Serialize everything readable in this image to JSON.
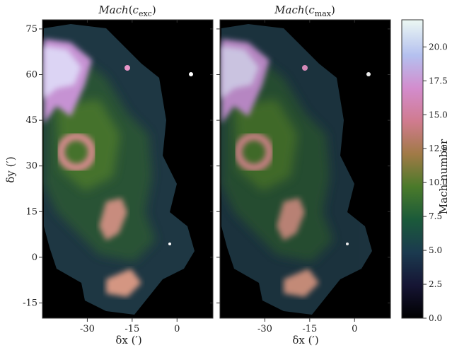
{
  "figure": {
    "panels": [
      {
        "title": "Mach(c_exc)",
        "title_main": "Mach",
        "title_sub": "exc"
      },
      {
        "title": "Mach(c_max)",
        "title_main": "Mach",
        "title_sub": "max"
      }
    ],
    "xlabel": "δx (′)",
    "ylabel": "δy (′)",
    "colorbar_label": "Mach number"
  },
  "chart_data": {
    "type": "heatmap",
    "colormap": "cubehelix",
    "panels": [
      {
        "title": "Mach(c_exc)"
      },
      {
        "title": "Mach(c_max)"
      }
    ],
    "x_axis": {
      "label": "δx (′)",
      "ticks": [
        -30,
        -15,
        0
      ],
      "range": [
        -45,
        12
      ]
    },
    "y_axis": {
      "label": "δy (′)",
      "ticks": [
        -15,
        0,
        15,
        30,
        45,
        60,
        75
      ],
      "range": [
        -20,
        78
      ]
    },
    "colorbar": {
      "label": "Mach number",
      "range": [
        0,
        22
      ],
      "ticks": [
        0.0,
        2.5,
        5.0,
        7.5,
        10.0,
        12.5,
        15.0,
        17.5,
        20.0
      ],
      "tick_labels": [
        "0.0",
        "2.5",
        "5.0",
        "7.5",
        "10.0",
        "12.5",
        "15.0",
        "17.5",
        "20.0"
      ]
    },
    "features": [
      {
        "region": "upper-left cloud",
        "x": -40,
        "y": 63,
        "mach": 17
      },
      {
        "region": "ring",
        "x": -33,
        "y": 32,
        "mach": 13
      },
      {
        "region": "mid filament",
        "x": -18,
        "y": 18,
        "mach": 11
      },
      {
        "region": "lower spur",
        "x": -17,
        "y": -8,
        "mach": 13
      }
    ]
  }
}
